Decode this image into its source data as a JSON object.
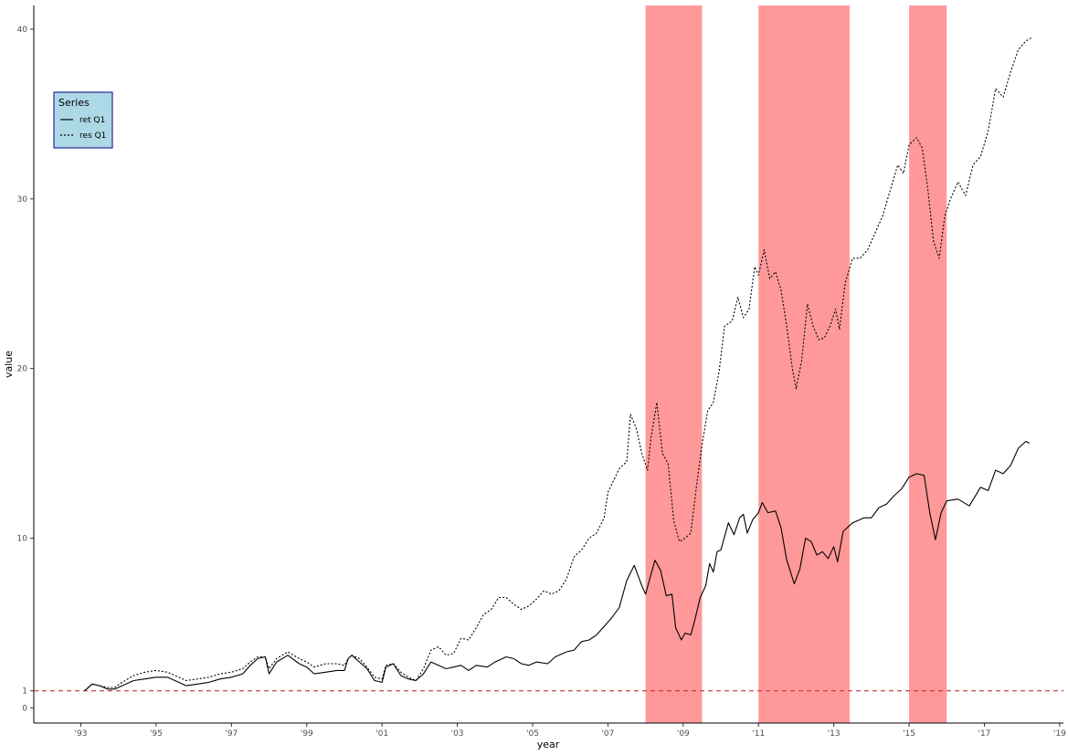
{
  "chart_data": {
    "type": "line",
    "title": "",
    "xlabel": "year",
    "ylabel": "value",
    "xlim": [
      1991.75,
      2019.1
    ],
    "ylim": [
      -0.9,
      41.4
    ],
    "x_ticks": [
      1993,
      1995,
      1997,
      1999,
      2001,
      2003,
      2005,
      2007,
      2009,
      2011,
      2013,
      2015,
      2017,
      2019
    ],
    "x_tick_labels": [
      "'93",
      "'95",
      "'97",
      "'99",
      "'01",
      "'03",
      "'05",
      "'07",
      "'09",
      "'11",
      "'13",
      "'15",
      "'17",
      "'19"
    ],
    "y_ticks": [
      0,
      1,
      10,
      20,
      30,
      40
    ],
    "y_tick_labels": [
      "0",
      "1",
      "10",
      "20",
      "30",
      "40"
    ],
    "grid": false,
    "reference_line": {
      "y": 1,
      "style": "dashed",
      "color": "#c0392b"
    },
    "shaded_regions": [
      {
        "x0": 2008.0,
        "x1": 2009.5,
        "color": "#ff9999"
      },
      {
        "x0": 2011.0,
        "x1": 2013.42,
        "color": "#ff9999"
      },
      {
        "x0": 2015.0,
        "x1": 2016.0,
        "color": "#ff9999"
      }
    ],
    "legend": {
      "title": "Series",
      "placement": "top-left",
      "background": "#add8e6",
      "border": "#00008b"
    },
    "series": [
      {
        "name": "ret Q1",
        "style": "solid",
        "color": "#000000",
        "points": [
          [
            1993.1,
            1.0
          ],
          [
            1993.3,
            1.4
          ],
          [
            1993.5,
            1.3
          ],
          [
            1993.7,
            1.1
          ],
          [
            1993.9,
            1.1
          ],
          [
            1994.1,
            1.3
          ],
          [
            1994.4,
            1.6
          ],
          [
            1994.7,
            1.7
          ],
          [
            1995.0,
            1.8
          ],
          [
            1995.3,
            1.8
          ],
          [
            1995.6,
            1.5
          ],
          [
            1995.8,
            1.3
          ],
          [
            1996.1,
            1.4
          ],
          [
            1996.4,
            1.5
          ],
          [
            1996.7,
            1.7
          ],
          [
            1997.0,
            1.8
          ],
          [
            1997.3,
            2.0
          ],
          [
            1997.5,
            2.5
          ],
          [
            1997.7,
            2.9
          ],
          [
            1997.9,
            3.0
          ],
          [
            1998.0,
            2.0
          ],
          [
            1998.2,
            2.7
          ],
          [
            1998.5,
            3.1
          ],
          [
            1998.8,
            2.6
          ],
          [
            1999.0,
            2.4
          ],
          [
            1999.2,
            2.0
          ],
          [
            1999.5,
            2.1
          ],
          [
            1999.8,
            2.2
          ],
          [
            2000.0,
            2.2
          ],
          [
            2000.1,
            2.9
          ],
          [
            2000.2,
            3.1
          ],
          [
            2000.4,
            2.7
          ],
          [
            2000.6,
            2.3
          ],
          [
            2000.8,
            1.6
          ],
          [
            2001.0,
            1.5
          ],
          [
            2001.1,
            2.4
          ],
          [
            2001.3,
            2.6
          ],
          [
            2001.5,
            1.9
          ],
          [
            2001.7,
            1.7
          ],
          [
            2001.9,
            1.6
          ],
          [
            2002.1,
            2.0
          ],
          [
            2002.3,
            2.7
          ],
          [
            2002.5,
            2.5
          ],
          [
            2002.7,
            2.3
          ],
          [
            2002.9,
            2.4
          ],
          [
            2003.1,
            2.5
          ],
          [
            2003.3,
            2.2
          ],
          [
            2003.5,
            2.5
          ],
          [
            2003.8,
            2.4
          ],
          [
            2004.0,
            2.7
          ],
          [
            2004.3,
            3.0
          ],
          [
            2004.5,
            2.9
          ],
          [
            2004.7,
            2.6
          ],
          [
            2004.9,
            2.5
          ],
          [
            2005.1,
            2.7
          ],
          [
            2005.4,
            2.6
          ],
          [
            2005.6,
            3.0
          ],
          [
            2005.9,
            3.3
          ],
          [
            2006.1,
            3.4
          ],
          [
            2006.3,
            3.9
          ],
          [
            2006.5,
            4.0
          ],
          [
            2006.7,
            4.3
          ],
          [
            2006.9,
            4.8
          ],
          [
            2007.1,
            5.3
          ],
          [
            2007.3,
            5.9
          ],
          [
            2007.5,
            7.5
          ],
          [
            2007.7,
            8.4
          ],
          [
            2007.9,
            7.2
          ],
          [
            2008.0,
            6.7
          ],
          [
            2008.1,
            7.5
          ],
          [
            2008.25,
            8.7
          ],
          [
            2008.4,
            8.1
          ],
          [
            2008.55,
            6.6
          ],
          [
            2008.7,
            6.7
          ],
          [
            2008.8,
            4.7
          ],
          [
            2008.95,
            4.0
          ],
          [
            2009.05,
            4.4
          ],
          [
            2009.2,
            4.3
          ],
          [
            2009.3,
            5.1
          ],
          [
            2009.45,
            6.5
          ],
          [
            2009.6,
            7.2
          ],
          [
            2009.7,
            8.5
          ],
          [
            2009.8,
            8.0
          ],
          [
            2009.9,
            9.2
          ],
          [
            2010.0,
            9.3
          ],
          [
            2010.2,
            10.9
          ],
          [
            2010.35,
            10.2
          ],
          [
            2010.5,
            11.2
          ],
          [
            2010.6,
            11.4
          ],
          [
            2010.7,
            10.3
          ],
          [
            2010.85,
            11.1
          ],
          [
            2011.0,
            11.5
          ],
          [
            2011.1,
            12.1
          ],
          [
            2011.25,
            11.5
          ],
          [
            2011.45,
            11.6
          ],
          [
            2011.6,
            10.6
          ],
          [
            2011.75,
            8.7
          ],
          [
            2011.85,
            8.0
          ],
          [
            2011.95,
            7.3
          ],
          [
            2012.1,
            8.2
          ],
          [
            2012.25,
            10.0
          ],
          [
            2012.4,
            9.8
          ],
          [
            2012.55,
            9.0
          ],
          [
            2012.7,
            9.2
          ],
          [
            2012.85,
            8.8
          ],
          [
            2013.0,
            9.5
          ],
          [
            2013.1,
            8.6
          ],
          [
            2013.25,
            10.4
          ],
          [
            2013.5,
            10.9
          ],
          [
            2013.8,
            11.2
          ],
          [
            2014.0,
            11.2
          ],
          [
            2014.2,
            11.8
          ],
          [
            2014.4,
            12.0
          ],
          [
            2014.6,
            12.5
          ],
          [
            2014.8,
            12.9
          ],
          [
            2015.0,
            13.6
          ],
          [
            2015.2,
            13.8
          ],
          [
            2015.4,
            13.7
          ],
          [
            2015.55,
            11.5
          ],
          [
            2015.7,
            9.9
          ],
          [
            2015.85,
            11.5
          ],
          [
            2016.0,
            12.2
          ],
          [
            2016.3,
            12.3
          ],
          [
            2016.6,
            11.9
          ],
          [
            2016.9,
            13.0
          ],
          [
            2017.1,
            12.8
          ],
          [
            2017.3,
            14.0
          ],
          [
            2017.5,
            13.8
          ],
          [
            2017.7,
            14.3
          ],
          [
            2017.9,
            15.3
          ],
          [
            2018.1,
            15.7
          ],
          [
            2018.2,
            15.6
          ]
        ]
      },
      {
        "name": "res Q1",
        "style": "dashed",
        "color": "#000000",
        "points": [
          [
            1993.1,
            1.0
          ],
          [
            1993.3,
            1.4
          ],
          [
            1993.5,
            1.3
          ],
          [
            1993.7,
            1.2
          ],
          [
            1993.9,
            1.2
          ],
          [
            1994.1,
            1.5
          ],
          [
            1994.4,
            1.9
          ],
          [
            1994.7,
            2.1
          ],
          [
            1995.0,
            2.2
          ],
          [
            1995.3,
            2.1
          ],
          [
            1995.6,
            1.8
          ],
          [
            1995.8,
            1.6
          ],
          [
            1996.1,
            1.7
          ],
          [
            1996.4,
            1.8
          ],
          [
            1996.7,
            2.0
          ],
          [
            1997.0,
            2.1
          ],
          [
            1997.3,
            2.3
          ],
          [
            1997.5,
            2.7
          ],
          [
            1997.7,
            3.0
          ],
          [
            1997.9,
            3.0
          ],
          [
            1998.0,
            2.3
          ],
          [
            1998.2,
            2.9
          ],
          [
            1998.5,
            3.3
          ],
          [
            1998.8,
            2.9
          ],
          [
            1999.0,
            2.7
          ],
          [
            1999.2,
            2.4
          ],
          [
            1999.5,
            2.6
          ],
          [
            1999.8,
            2.6
          ],
          [
            2000.0,
            2.5
          ],
          [
            2000.1,
            2.9
          ],
          [
            2000.2,
            3.1
          ],
          [
            2000.4,
            2.9
          ],
          [
            2000.6,
            2.4
          ],
          [
            2000.8,
            1.8
          ],
          [
            2001.0,
            1.7
          ],
          [
            2001.1,
            2.5
          ],
          [
            2001.3,
            2.6
          ],
          [
            2001.5,
            2.1
          ],
          [
            2001.7,
            1.8
          ],
          [
            2001.9,
            1.6
          ],
          [
            2002.1,
            2.3
          ],
          [
            2002.3,
            3.4
          ],
          [
            2002.5,
            3.6
          ],
          [
            2002.7,
            3.1
          ],
          [
            2002.9,
            3.2
          ],
          [
            2003.1,
            4.1
          ],
          [
            2003.3,
            4.0
          ],
          [
            2003.5,
            4.7
          ],
          [
            2003.7,
            5.5
          ],
          [
            2003.9,
            5.8
          ],
          [
            2004.1,
            6.5
          ],
          [
            2004.3,
            6.5
          ],
          [
            2004.5,
            6.1
          ],
          [
            2004.7,
            5.8
          ],
          [
            2004.9,
            6.0
          ],
          [
            2005.1,
            6.4
          ],
          [
            2005.3,
            6.9
          ],
          [
            2005.5,
            6.7
          ],
          [
            2005.7,
            6.9
          ],
          [
            2005.9,
            7.6
          ],
          [
            2006.1,
            8.9
          ],
          [
            2006.3,
            9.3
          ],
          [
            2006.5,
            10.0
          ],
          [
            2006.7,
            10.3
          ],
          [
            2006.9,
            11.2
          ],
          [
            2007.0,
            12.7
          ],
          [
            2007.15,
            13.4
          ],
          [
            2007.3,
            14.1
          ],
          [
            2007.5,
            14.5
          ],
          [
            2007.6,
            17.3
          ],
          [
            2007.75,
            16.5
          ],
          [
            2007.9,
            15.0
          ],
          [
            2008.05,
            14.0
          ],
          [
            2008.15,
            16.0
          ],
          [
            2008.3,
            18.0
          ],
          [
            2008.45,
            15.0
          ],
          [
            2008.6,
            14.4
          ],
          [
            2008.75,
            11.0
          ],
          [
            2008.9,
            9.8
          ],
          [
            2009.05,
            10.0
          ],
          [
            2009.2,
            10.3
          ],
          [
            2009.35,
            13.0
          ],
          [
            2009.5,
            15.5
          ],
          [
            2009.65,
            17.5
          ],
          [
            2009.8,
            18.0
          ],
          [
            2009.95,
            19.8
          ],
          [
            2010.1,
            22.5
          ],
          [
            2010.3,
            22.8
          ],
          [
            2010.45,
            24.2
          ],
          [
            2010.6,
            23.0
          ],
          [
            2010.75,
            23.5
          ],
          [
            2010.9,
            26.0
          ],
          [
            2011.0,
            25.5
          ],
          [
            2011.15,
            27.0
          ],
          [
            2011.3,
            25.3
          ],
          [
            2011.45,
            25.7
          ],
          [
            2011.6,
            24.6
          ],
          [
            2011.75,
            22.5
          ],
          [
            2011.9,
            20.0
          ],
          [
            2012.0,
            18.8
          ],
          [
            2012.15,
            20.5
          ],
          [
            2012.3,
            23.8
          ],
          [
            2012.45,
            22.5
          ],
          [
            2012.6,
            21.7
          ],
          [
            2012.75,
            21.8
          ],
          [
            2012.9,
            22.5
          ],
          [
            2013.05,
            23.5
          ],
          [
            2013.15,
            22.3
          ],
          [
            2013.3,
            25.0
          ],
          [
            2013.5,
            26.5
          ],
          [
            2013.7,
            26.5
          ],
          [
            2013.9,
            27.0
          ],
          [
            2014.1,
            28.0
          ],
          [
            2014.3,
            29.0
          ],
          [
            2014.5,
            30.5
          ],
          [
            2014.7,
            32.0
          ],
          [
            2014.85,
            31.5
          ],
          [
            2015.0,
            33.2
          ],
          [
            2015.2,
            33.6
          ],
          [
            2015.35,
            33.0
          ],
          [
            2015.5,
            30.5
          ],
          [
            2015.65,
            27.5
          ],
          [
            2015.8,
            26.5
          ],
          [
            2015.95,
            29.0
          ],
          [
            2016.1,
            30.0
          ],
          [
            2016.3,
            31.0
          ],
          [
            2016.5,
            30.2
          ],
          [
            2016.7,
            32.0
          ],
          [
            2016.9,
            32.5
          ],
          [
            2017.1,
            34.0
          ],
          [
            2017.3,
            36.5
          ],
          [
            2017.5,
            36.0
          ],
          [
            2017.7,
            37.5
          ],
          [
            2017.9,
            38.8
          ],
          [
            2018.1,
            39.3
          ],
          [
            2018.25,
            39.5
          ]
        ]
      }
    ]
  }
}
